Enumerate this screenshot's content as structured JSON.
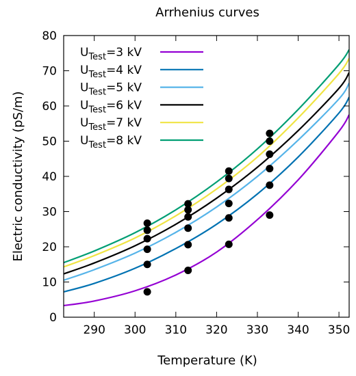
{
  "chart_data": {
    "type": "line",
    "title": "Arrhenius curves",
    "xlabel": "Temperature (K)",
    "ylabel": "Electric conductivity (pS/m)",
    "xlim": [
      282.5,
      352.5
    ],
    "ylim": [
      0,
      80
    ],
    "xticks": [
      290,
      300,
      310,
      320,
      330,
      340,
      350
    ],
    "yticks": [
      0,
      10,
      20,
      30,
      40,
      50,
      60,
      70,
      80
    ],
    "grid": false,
    "legend_position": "top-left",
    "series": [
      {
        "name_main": "U",
        "name_sub": "Test",
        "name_tail": "=3 kV",
        "color": "#9400d3",
        "curve_x": [
          282.5,
          290,
          300,
          310,
          320,
          330,
          340,
          350,
          352.5
        ],
        "curve_y": [
          3.3,
          4.6,
          7.5,
          12.0,
          18.5,
          27.7,
          39.0,
          52.8,
          57.5
        ],
        "points_x": [
          303,
          313,
          323,
          333
        ],
        "points_y": [
          7.2,
          13.3,
          20.7,
          29.0
        ]
      },
      {
        "name_main": "U",
        "name_sub": "Test",
        "name_tail": "=4 kV",
        "color": "#0072b2",
        "curve_x": [
          282.5,
          290,
          300,
          310,
          320,
          330,
          340,
          350,
          352.5
        ],
        "curve_y": [
          7.2,
          9.6,
          13.9,
          19.5,
          26.4,
          35.0,
          45.5,
          58.0,
          62.5
        ],
        "points_x": [
          303,
          313,
          323,
          333
        ],
        "points_y": [
          15.0,
          20.6,
          28.2,
          37.5
        ]
      },
      {
        "name_main": "U",
        "name_sub": "Test",
        "name_tail": "=5 kV",
        "color": "#56b4e9",
        "curve_x": [
          282.5,
          290,
          300,
          310,
          320,
          330,
          340,
          350,
          352.5
        ],
        "curve_y": [
          10.5,
          13.5,
          18.2,
          24.1,
          31.3,
          40.0,
          50.3,
          62.0,
          66.5
        ],
        "points_x": [
          303,
          313,
          323,
          333
        ],
        "points_y": [
          19.3,
          25.3,
          32.3,
          42.2
        ]
      },
      {
        "name_main": "U",
        "name_sub": "Test",
        "name_tail": "=6 kV",
        "color": "#000000",
        "curve_x": [
          282.5,
          290,
          300,
          310,
          320,
          330,
          340,
          350,
          352.5
        ],
        "curve_y": [
          12.3,
          15.4,
          20.3,
          26.4,
          33.8,
          42.6,
          53.0,
          65.0,
          69.5
        ],
        "points_x": [
          303,
          313,
          323,
          333
        ],
        "points_y": [
          22.3,
          28.5,
          36.3,
          46.3
        ]
      },
      {
        "name_main": "U",
        "name_sub": "Test",
        "name_tail": "=7 kV",
        "color": "#f0e442",
        "curve_x": [
          282.5,
          290,
          300,
          310,
          320,
          330,
          340,
          350,
          352.5
        ],
        "curve_y": [
          14.3,
          17.5,
          22.5,
          28.8,
          36.4,
          45.5,
          56.6,
          69.2,
          73.5
        ],
        "points_x": [
          303,
          313,
          323,
          333
        ],
        "points_y": [
          24.7,
          30.5,
          39.4,
          50.0
        ]
      },
      {
        "name_main": "U",
        "name_sub": "Test",
        "name_tail": "=8 kV",
        "color": "#009e73",
        "curve_x": [
          282.5,
          290,
          300,
          310,
          320,
          330,
          340,
          350,
          352.5
        ],
        "curve_y": [
          15.5,
          18.8,
          24.0,
          30.5,
          38.4,
          47.8,
          59.0,
          71.8,
          76.0
        ],
        "points_x": [
          303,
          313,
          323,
          333
        ],
        "points_y": [
          26.7,
          32.2,
          41.5,
          52.2
        ]
      }
    ]
  }
}
